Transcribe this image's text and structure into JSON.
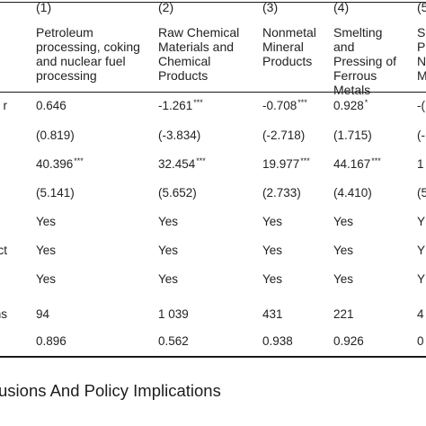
{
  "columns": [
    {
      "num": "(1)",
      "title": "Petroleum\nprocessing, coking\nand nuclear fuel\nprocessing"
    },
    {
      "num": "(2)",
      "title": "Raw Chemical\nMaterials and\nChemical\nProducts"
    },
    {
      "num": "(3)",
      "title": "Nonmetal\nMineral\nProducts"
    },
    {
      "num": "(4)",
      "title": "Smelting\nand\nPressing of\nFerrous\nMetals"
    },
    {
      "num": "(5",
      "title": "S\nP\nN\nM"
    }
  ],
  "row_labels": [
    "r",
    "",
    "",
    "",
    "",
    "ct",
    "",
    "ons",
    ""
  ],
  "rows": [
    [
      {
        "v": "0.646",
        "s": ""
      },
      {
        "v": "-1.261",
        "s": "***"
      },
      {
        "v": "-0.708",
        "s": "***"
      },
      {
        "v": "0.928",
        "s": "*"
      },
      {
        "v": "-(",
        "s": ""
      }
    ],
    [
      {
        "v": "(0.819)",
        "s": ""
      },
      {
        "v": "(-3.834)",
        "s": ""
      },
      {
        "v": "(-2.718)",
        "s": ""
      },
      {
        "v": "(1.715)",
        "s": ""
      },
      {
        "v": "(-",
        "s": ""
      }
    ],
    [
      {
        "v": "40.396",
        "s": "***"
      },
      {
        "v": "32.454",
        "s": "***"
      },
      {
        "v": "19.977",
        "s": "***"
      },
      {
        "v": "44.167",
        "s": "***"
      },
      {
        "v": "1",
        "s": ""
      }
    ],
    [
      {
        "v": "(5.141)",
        "s": ""
      },
      {
        "v": "(5.652)",
        "s": ""
      },
      {
        "v": "(2.733)",
        "s": ""
      },
      {
        "v": "(4.410)",
        "s": ""
      },
      {
        "v": "(5",
        "s": ""
      }
    ],
    [
      {
        "v": "Yes",
        "s": ""
      },
      {
        "v": "Yes",
        "s": ""
      },
      {
        "v": "Yes",
        "s": ""
      },
      {
        "v": "Yes",
        "s": ""
      },
      {
        "v": "Y",
        "s": ""
      }
    ],
    [
      {
        "v": "Yes",
        "s": ""
      },
      {
        "v": "Yes",
        "s": ""
      },
      {
        "v": "Yes",
        "s": ""
      },
      {
        "v": "Yes",
        "s": ""
      },
      {
        "v": "Y",
        "s": ""
      }
    ],
    [
      {
        "v": "Yes",
        "s": ""
      },
      {
        "v": "Yes",
        "s": ""
      },
      {
        "v": "Yes",
        "s": ""
      },
      {
        "v": "Yes",
        "s": ""
      },
      {
        "v": "Y",
        "s": ""
      }
    ],
    [
      {
        "v": "94",
        "s": ""
      },
      {
        "v": "1 039",
        "s": ""
      },
      {
        "v": "431",
        "s": ""
      },
      {
        "v": "221",
        "s": ""
      },
      {
        "v": "4",
        "s": ""
      }
    ],
    [
      {
        "v": "0.896",
        "s": ""
      },
      {
        "v": "0.562",
        "s": ""
      },
      {
        "v": "0.938",
        "s": ""
      },
      {
        "v": "0.926",
        "s": ""
      },
      {
        "v": "0",
        "s": ""
      }
    ]
  ],
  "section_heading": "usions And Policy Implications"
}
